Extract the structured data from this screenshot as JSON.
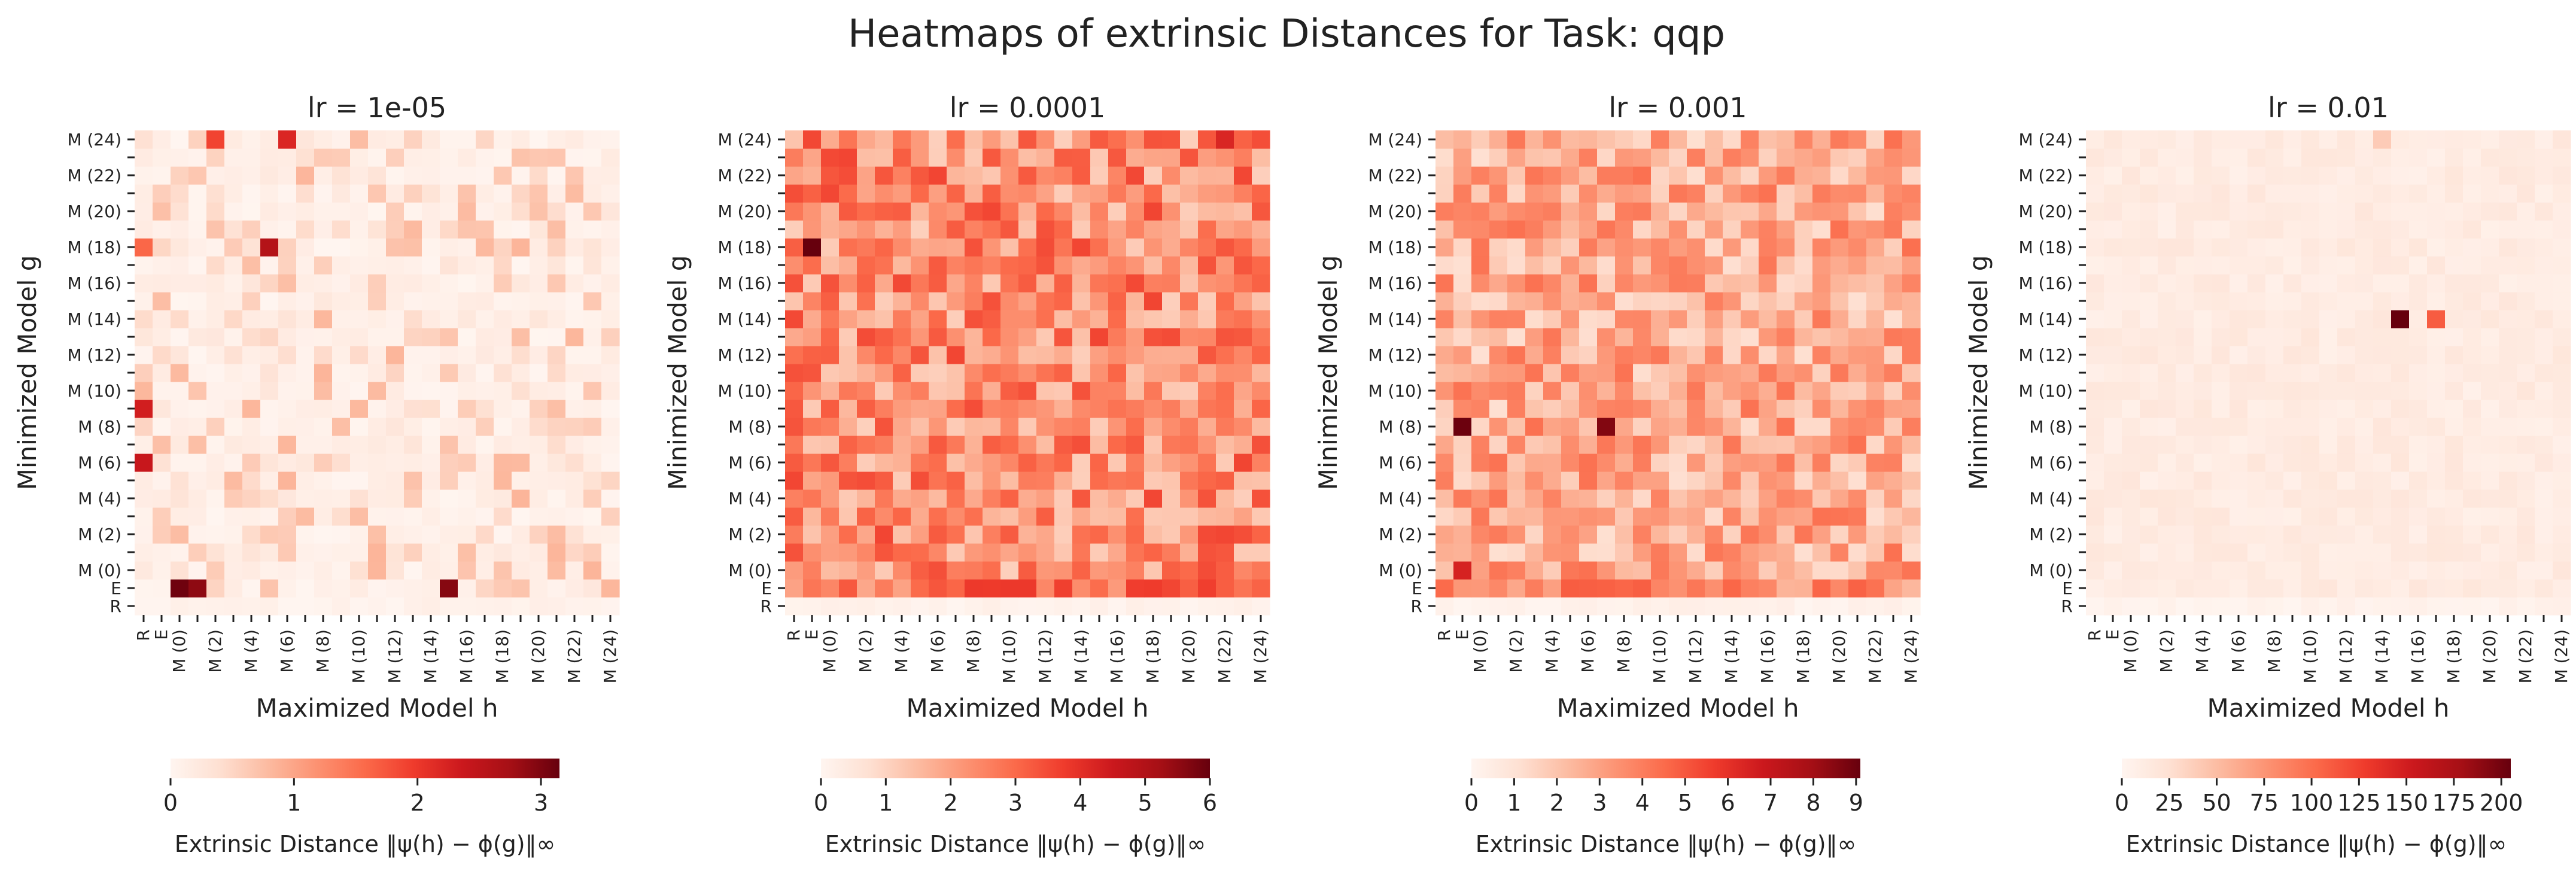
{
  "figure": {
    "title": "Heatmaps of extrinsic Distances for Task: qqp"
  },
  "chart_data": [
    {
      "type": "heatmap",
      "title": "lr = 1e-05",
      "xlabel": "Maximized Model h",
      "ylabel": "Minimized Model g",
      "colorbar_label": "Extrinsic Distance ‖ψ(h) − ϕ(g)‖∞",
      "colorbar_ticks": [
        0,
        1,
        2,
        3
      ],
      "vmax": 3.15,
      "hotspots": [
        {
          "row": 1,
          "col": 2,
          "value": 3.1
        },
        {
          "row": 1,
          "col": 3,
          "value": 2.9
        },
        {
          "row": 1,
          "col": 17,
          "value": 2.95
        },
        {
          "row": 8,
          "col": 0,
          "value": 2.4
        },
        {
          "row": 11,
          "col": 0,
          "value": 2.3
        },
        {
          "row": 20,
          "col": 7,
          "value": 2.6
        },
        {
          "row": 26,
          "col": 8,
          "value": 2.2
        },
        {
          "row": 26,
          "col": 4,
          "value": 1.9
        },
        {
          "row": 20,
          "col": 0,
          "value": 1.6
        }
      ]
    },
    {
      "type": "heatmap",
      "title": "lr = 0.0001",
      "xlabel": "Maximized Model h",
      "ylabel": "Minimized Model g",
      "colorbar_label": "Extrinsic Distance ‖ψ(h) − ϕ(g)‖∞",
      "colorbar_ticks": [
        0,
        1,
        2,
        3,
        4,
        5,
        6
      ],
      "vmax": 6.0,
      "hotspots": [
        {
          "row": 20,
          "col": 1,
          "value": 6.0
        },
        {
          "row": 26,
          "col": 24,
          "value": 4.2
        },
        {
          "row": 1,
          "col": 10,
          "value": 3.8
        }
      ]
    },
    {
      "type": "heatmap",
      "title": "lr = 0.001",
      "xlabel": "Maximized Model h",
      "ylabel": "Minimized Model g",
      "colorbar_label": "Extrinsic Distance ‖ψ(h) − ϕ(g)‖∞",
      "colorbar_ticks": [
        0,
        1,
        2,
        3,
        4,
        5,
        6,
        7,
        8,
        9
      ],
      "vmax": 9.1,
      "hotspots": [
        {
          "row": 10,
          "col": 1,
          "value": 9.0
        },
        {
          "row": 10,
          "col": 9,
          "value": 8.6
        },
        {
          "row": 2,
          "col": 1,
          "value": 6.5
        }
      ]
    },
    {
      "type": "heatmap",
      "title": "lr = 0.01",
      "xlabel": "Maximized Model h",
      "ylabel": "Minimized Model g",
      "colorbar_label": "Extrinsic Distance ‖ψ(h) − ϕ(g)‖∞",
      "colorbar_ticks": [
        0,
        25,
        50,
        75,
        100,
        125,
        150,
        175,
        200
      ],
      "vmax": 205,
      "hotspots": [
        {
          "row": 16,
          "col": 17,
          "value": 205
        },
        {
          "row": 16,
          "col": 19,
          "value": 110
        },
        {
          "row": 26,
          "col": 16,
          "value": 40
        }
      ]
    }
  ],
  "row_labels": [
    "R",
    "E",
    "M (0)",
    "M (1)",
    "M (2)",
    "M (3)",
    "M (4)",
    "M (5)",
    "M (6)",
    "M (7)",
    "M (8)",
    "M (9)",
    "M (10)",
    "M (11)",
    "M (12)",
    "M (13)",
    "M (14)",
    "M (15)",
    "M (16)",
    "M (17)",
    "M (18)",
    "M (19)",
    "M (20)",
    "M (21)",
    "M (22)",
    "M (23)",
    "M (24)"
  ],
  "col_labels": [
    "R",
    "E",
    "M (0)",
    "M (1)",
    "M (2)",
    "M (3)",
    "M (4)",
    "M (5)",
    "M (6)",
    "M (7)",
    "M (8)",
    "M (9)",
    "M (10)",
    "M (11)",
    "M (12)",
    "M (13)",
    "M (14)",
    "M (15)",
    "M (16)",
    "M (17)",
    "M (18)",
    "M (19)",
    "M (20)",
    "M (21)",
    "M (22)",
    "M (23)",
    "M (24)"
  ],
  "colormap": {
    "name": "Reds",
    "stops": [
      "#fff5f0",
      "#fee0d2",
      "#fcbba1",
      "#fc9272",
      "#fb6a4a",
      "#ef3b2c",
      "#cb181d",
      "#a50f15",
      "#67000d"
    ]
  }
}
